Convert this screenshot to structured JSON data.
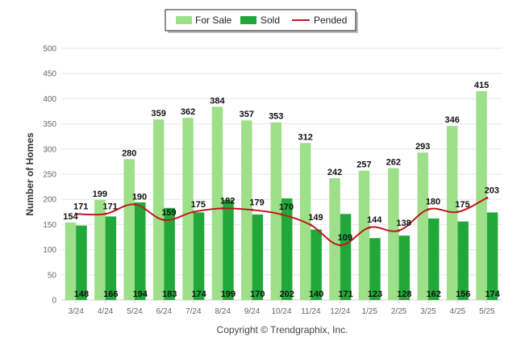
{
  "chart_data": {
    "type": "bar",
    "categories": [
      "3/24",
      "4/24",
      "5/24",
      "6/24",
      "7/24",
      "8/24",
      "9/24",
      "10/24",
      "11/24",
      "12/24",
      "1/25",
      "2/25",
      "3/25",
      "4/25",
      "5/25"
    ],
    "series": [
      {
        "name": "For Sale",
        "type": "bar",
        "color": "#9ee08a",
        "values": [
          154,
          199,
          280,
          359,
          362,
          384,
          357,
          353,
          312,
          242,
          257,
          262,
          293,
          346,
          415
        ]
      },
      {
        "name": "Sold",
        "type": "bar",
        "color": "#22a83a",
        "values": [
          148,
          166,
          194,
          183,
          174,
          199,
          170,
          202,
          140,
          171,
          123,
          128,
          162,
          156,
          174
        ]
      },
      {
        "name": "Pended",
        "type": "line",
        "color": "#c0191d",
        "values": [
          171,
          171,
          190,
          159,
          175,
          182,
          179,
          170,
          149,
          109,
          144,
          138,
          180,
          175,
          203
        ]
      }
    ],
    "ylabel": "Number of Homes",
    "xlabel": "",
    "ylim": [
      0,
      500
    ],
    "yticks": [
      0,
      50,
      100,
      150,
      200,
      250,
      300,
      350,
      400,
      450,
      500
    ],
    "grid": true,
    "legend_position": "top-center",
    "footer": "Copyright © Trendgraphix, Inc."
  }
}
